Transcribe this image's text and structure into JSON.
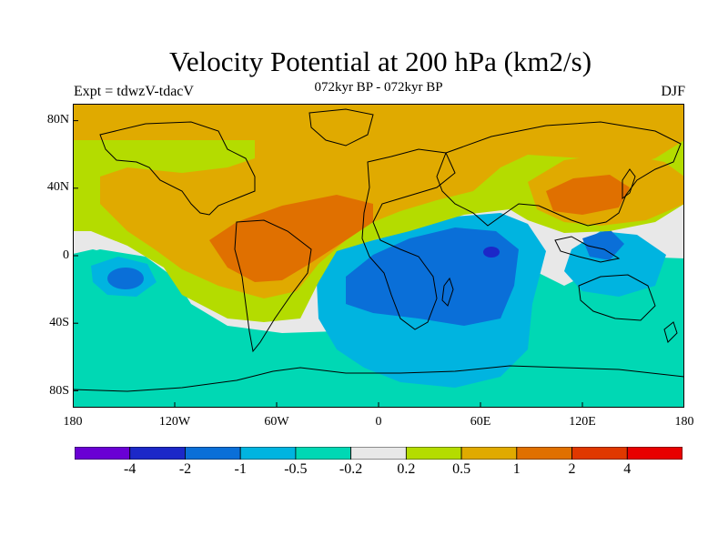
{
  "figure": {
    "title": "Velocity Potential at 200 hPa (km2/s)",
    "left_label": "Expt = tdwzV-tdacV",
    "center_label": "072kyr BP - 072kyr BP",
    "right_label": "DJF"
  },
  "chart_data": {
    "type": "heatmap",
    "title": "Velocity Potential at 200 hPa (km2/s)",
    "lat_ticks": [
      "80N",
      "40N",
      "0",
      "40S",
      "80S"
    ],
    "lon_ticks": [
      "180",
      "120W",
      "60W",
      "0",
      "60E",
      "120E",
      "180"
    ],
    "lat_range": [
      -90,
      90
    ],
    "lon_range": [
      -180,
      180
    ],
    "contour_levels": [
      "-4",
      "-2",
      "-1",
      "-0.5",
      "-0.2",
      "0.2",
      "0.5",
      "1",
      "2",
      "4"
    ],
    "colorbar_colors": [
      "#6a00d4",
      "#1c28c8",
      "#0a6fd8",
      "#00b4e0",
      "#00d8b4",
      "#e8e8e8",
      "#b4dc00",
      "#e0aa00",
      "#e07000",
      "#e03800",
      "#e80000"
    ],
    "features": [
      {
        "name": "positive-center-americas",
        "lon": -60,
        "lat": 10,
        "level": "2"
      },
      {
        "name": "positive-center-east-asia",
        "lon": 130,
        "lat": 38,
        "level": "2"
      },
      {
        "name": "negative-center-indian-ocean",
        "lon": 62,
        "lat": 2,
        "level": "-2"
      },
      {
        "name": "negative-center-south-pacific",
        "lon": -148,
        "lat": -14,
        "level": "-1"
      }
    ]
  }
}
